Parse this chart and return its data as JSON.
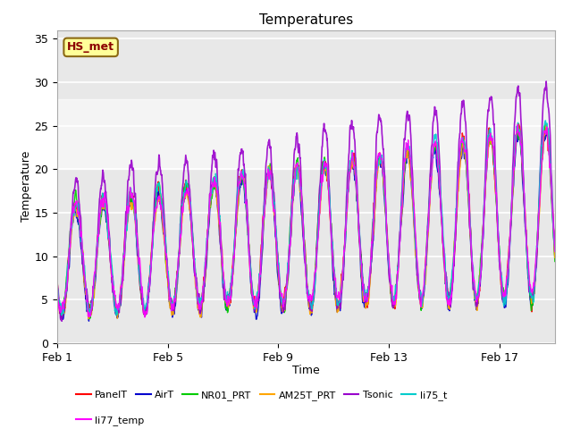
{
  "title": "Temperatures",
  "xlabel": "Time",
  "ylabel": "Temperature",
  "ylim": [
    0,
    36
  ],
  "yticks": [
    0,
    5,
    10,
    15,
    20,
    25,
    30,
    35
  ],
  "x_tick_labels": [
    "Feb 1",
    "Feb 5",
    "Feb 9",
    "Feb 13",
    "Feb 17"
  ],
  "x_tick_positions": [
    0,
    4,
    8,
    12,
    16
  ],
  "annotation_text": "HS_met",
  "annotation_color": "#8B0000",
  "annotation_bg": "#FFFF99",
  "annotation_edge": "#8B6914",
  "series_names": [
    "PanelT",
    "AirT",
    "NR01_PRT",
    "AM25T_PRT",
    "Tsonic",
    "li75_t",
    "li77_temp"
  ],
  "series_colors": [
    "#FF0000",
    "#0000CD",
    "#00CC00",
    "#FFA500",
    "#9900CC",
    "#00CCCC",
    "#FF00FF"
  ],
  "series_lw": [
    1.0,
    1.0,
    1.0,
    1.0,
    1.2,
    1.0,
    1.0
  ],
  "shaded_band": [
    20,
    28
  ],
  "bg_color": "#E8E8E8",
  "fig_bg": "#FFFFFF",
  "n_days": 18,
  "pts_per_day": 96
}
